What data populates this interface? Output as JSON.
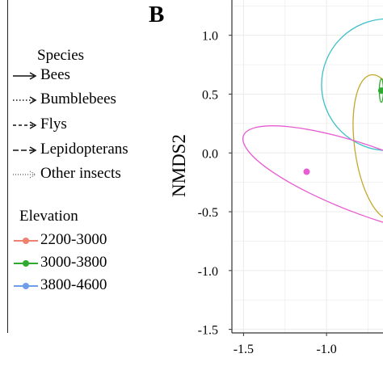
{
  "panel_letter": "B",
  "legend": {
    "species_title": "Species",
    "species": [
      {
        "label": "Bees",
        "line": "solid"
      },
      {
        "label": "Bumblebees",
        "line": "dotted"
      },
      {
        "label": "Flys",
        "line": "dashed"
      },
      {
        "label": "Lepidopterans",
        "line": "longdash"
      },
      {
        "label": "Other insects",
        "line": "dotted-fine"
      }
    ],
    "elevation_title": "Elevation",
    "elevation": [
      {
        "label": "2200-3000",
        "color": "#f08070"
      },
      {
        "label": "3000-3800",
        "color": "#2eaa2e"
      },
      {
        "label": "3800-4600",
        "color": "#6e9ee8"
      }
    ]
  },
  "chart_data": {
    "type": "scatter",
    "ylabel": "NMDS2",
    "xlabel": "",
    "x_ticks": [
      "-1.5",
      "-1.0"
    ],
    "y_ticks": [
      "1.0",
      "0.5",
      "0.0",
      "-0.5",
      "-1.0",
      "-1.5"
    ],
    "xlim": [
      -1.57,
      -0.66
    ],
    "ylim": [
      -1.53,
      1.3
    ],
    "grid": true,
    "ellipses": [
      {
        "color": "#3cbfc8",
        "cx": -0.63,
        "cy": 0.58,
        "rx": 0.4,
        "ry": 0.56,
        "angle": 0
      },
      {
        "color": "#c4a82a",
        "cx": -0.67,
        "cy": 0.05,
        "rx": 0.16,
        "ry": 0.62,
        "angle": -8
      },
      {
        "color": "#e85bd2",
        "cx": -0.73,
        "cy": -0.25,
        "rx": 0.82,
        "ry": 0.29,
        "angle": 20
      },
      {
        "color": "#2eaa2e",
        "cx": -0.67,
        "cy": 0.53,
        "rx": 0.012,
        "ry": 0.1,
        "angle": 0
      }
    ],
    "points": [
      {
        "x": -1.12,
        "y": -0.16,
        "color": "#e85bd2"
      },
      {
        "x": -0.67,
        "y": 0.53,
        "color": "#2eaa2e"
      }
    ]
  }
}
